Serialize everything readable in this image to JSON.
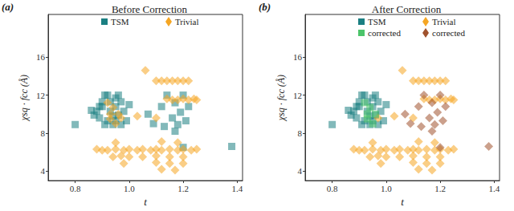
{
  "chart_data": [
    {
      "type": "scatter",
      "title": "Before Correction",
      "annotation": "(a)",
      "x_label": "t",
      "y_label": "χsq · fcc (Å)",
      "xlim": [
        0.7,
        1.42
      ],
      "xticks": [
        0.8,
        {
          "value": 1,
          "label": "1.0"
        },
        1.2,
        1.4
      ],
      "ylim": [
        3,
        20.5
      ],
      "yticks": [
        4,
        8,
        12,
        16
      ],
      "grid": false,
      "series": [
        {
          "name": "TSM",
          "color": "#1b7f82",
          "marker": "square",
          "x": [
            0.8,
            0.86,
            0.87,
            0.88,
            0.89,
            0.9,
            0.9,
            0.91,
            0.92,
            0.93,
            0.93,
            0.94,
            0.94,
            0.95,
            0.95,
            0.96,
            0.96,
            0.97,
            0.97,
            0.98,
            0.99,
            1.0,
            0.92,
            0.91,
            0.89,
            0.95,
            1.07,
            1.09,
            1.12,
            1.14,
            1.16,
            1.17,
            1.18,
            1.19,
            1.2,
            1.21,
            1.22,
            1.2,
            1.38,
            1.13,
            1.17
          ],
          "y": [
            8.9,
            10.4,
            9.9,
            10.3,
            9.6,
            11.3,
            10.8,
            12.0,
            12.0,
            11.3,
            10.3,
            9.8,
            8.9,
            9.3,
            10.8,
            12.0,
            9.9,
            11.3,
            8.9,
            10.3,
            9.3,
            11.0,
            9.3,
            8.9,
            10.8,
            11.7,
            10.0,
            9.0,
            10.8,
            12.0,
            9.6,
            11.2,
            8.9,
            10.2,
            12.0,
            9.3,
            10.8,
            6.5,
            6.6,
            8.7,
            8.2
          ]
        },
        {
          "name": "Trivial",
          "color": "#f5a623",
          "marker": "diamond",
          "x": [
            0.93,
            0.93,
            0.94,
            0.95,
            0.92,
            0.96,
            1.06,
            1.1,
            1.12,
            1.14,
            1.16,
            1.18,
            1.2,
            1.22,
            1.14,
            1.16,
            1.18,
            1.2,
            1.22,
            1.24,
            1.25,
            1.03,
            0.97,
            1.1,
            0.88,
            0.9,
            0.92,
            0.95,
            0.98,
            1.0,
            1.03,
            1.05,
            1.08,
            1.1,
            1.12,
            1.15,
            1.18,
            1.2,
            1.23,
            1.25,
            0.95,
            1.12,
            1.18,
            0.94,
            0.97,
            1.0,
            1.05,
            1.1,
            1.15,
            1.2,
            0.98,
            1.1,
            1.15,
            1.2,
            1.12,
            1.17
          ],
          "y": [
            9.5,
            10.0,
            10.7,
            9.0,
            11.2,
            10.0,
            14.6,
            13.5,
            13.5,
            13.5,
            13.5,
            13.5,
            13.5,
            13.5,
            11.6,
            11.5,
            11.5,
            11.6,
            11.5,
            11.6,
            11.5,
            9.8,
            9.6,
            9.6,
            6.3,
            6.2,
            6.2,
            6.3,
            6.2,
            6.3,
            6.2,
            6.3,
            6.2,
            6.3,
            6.2,
            6.3,
            6.2,
            6.3,
            6.2,
            6.3,
            7.0,
            7.1,
            7.0,
            5.5,
            5.6,
            5.5,
            5.5,
            5.6,
            5.5,
            5.5,
            4.8,
            4.9,
            4.8,
            4.8,
            4.2,
            4.1
          ]
        }
      ]
    },
    {
      "type": "scatter",
      "title": "After Correction",
      "annotation": "(b)",
      "x_label": "t",
      "y_label": "χsq · fcc (Å)",
      "xlim": [
        0.7,
        1.42
      ],
      "xticks": [
        0.8,
        {
          "value": 1,
          "label": "1.0"
        },
        1.2,
        1.4
      ],
      "ylim": [
        3,
        20.5
      ],
      "yticks": [
        4,
        8,
        12,
        16
      ],
      "grid": false,
      "series": [
        {
          "name": "TSM",
          "color": "#1b7f82",
          "marker": "square",
          "x": [
            0.8,
            0.86,
            0.87,
            0.88,
            0.89,
            0.9,
            0.9,
            0.91,
            0.92,
            0.93,
            0.93,
            0.94,
            0.94,
            0.95,
            0.95,
            0.96,
            0.96,
            0.97,
            0.97,
            0.98,
            0.99,
            1.0,
            0.92,
            0.91,
            0.89,
            0.95
          ],
          "y": [
            8.9,
            10.4,
            9.9,
            10.3,
            9.6,
            11.3,
            10.8,
            12.0,
            12.0,
            11.3,
            10.3,
            9.8,
            8.9,
            9.3,
            10.8,
            12.0,
            9.9,
            11.3,
            8.9,
            10.3,
            9.3,
            11.0,
            9.3,
            8.9,
            10.8,
            11.7
          ]
        },
        {
          "name": "Trivial",
          "color": "#f5a623",
          "marker": "diamond",
          "x": [
            1.06,
            1.1,
            1.12,
            1.14,
            1.16,
            1.18,
            1.2,
            1.22,
            1.14,
            1.16,
            1.18,
            1.2,
            1.22,
            1.24,
            1.25,
            1.03,
            0.97,
            1.1,
            0.88,
            0.9,
            0.92,
            0.95,
            0.98,
            1.0,
            1.03,
            1.05,
            1.08,
            1.1,
            1.12,
            1.15,
            1.18,
            1.2,
            1.23,
            1.25,
            0.95,
            1.12,
            1.18,
            0.94,
            0.97,
            1.0,
            1.05,
            1.1,
            1.15,
            1.2,
            0.98,
            1.1,
            1.15,
            1.2,
            1.12,
            1.17
          ],
          "y": [
            14.6,
            13.5,
            13.5,
            13.5,
            13.5,
            13.5,
            13.5,
            13.5,
            11.6,
            11.5,
            11.5,
            11.6,
            11.5,
            11.6,
            11.5,
            9.8,
            9.6,
            9.6,
            6.3,
            6.2,
            6.2,
            6.3,
            6.2,
            6.3,
            6.2,
            6.3,
            6.2,
            6.3,
            6.2,
            6.3,
            6.2,
            6.3,
            6.2,
            6.3,
            7.0,
            7.1,
            7.0,
            5.5,
            5.6,
            5.5,
            5.5,
            5.6,
            5.5,
            5.5,
            4.8,
            4.9,
            4.8,
            4.8,
            4.2,
            4.1
          ]
        },
        {
          "name": "corrected",
          "color": "#4cc46a",
          "marker": "square",
          "x": [
            0.93,
            0.93,
            0.94,
            0.95,
            0.92,
            0.96
          ],
          "y": [
            9.5,
            10.0,
            10.7,
            9.0,
            11.2,
            10.0
          ]
        },
        {
          "name": "corrected",
          "color": "#a0522d",
          "marker": "diamond",
          "x": [
            1.07,
            1.09,
            1.12,
            1.14,
            1.16,
            1.17,
            1.18,
            1.19,
            1.2,
            1.21,
            1.22,
            1.2,
            1.38,
            1.13,
            1.17
          ],
          "y": [
            10.0,
            9.0,
            10.8,
            12.0,
            9.6,
            11.2,
            8.9,
            10.2,
            12.0,
            9.3,
            10.8,
            6.5,
            6.6,
            8.7,
            8.2
          ]
        }
      ]
    }
  ]
}
